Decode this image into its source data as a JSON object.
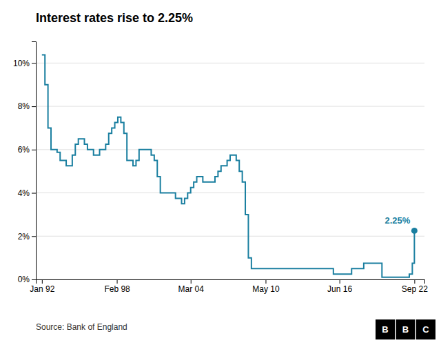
{
  "chart_data": {
    "type": "line",
    "line_style": "step",
    "title": "Interest rates rise to 2.25%",
    "source": "Source: Bank of England",
    "logo": [
      "B",
      "B",
      "C"
    ],
    "color": "#1a7fa0",
    "grid": true,
    "x": [
      1992.0,
      1992.08,
      1992.25,
      1992.5,
      1992.75,
      1993.0,
      1993.25,
      1993.5,
      1993.75,
      1994.0,
      1994.25,
      1994.5,
      1994.75,
      1995.0,
      1995.25,
      1995.5,
      1995.75,
      1996.0,
      1996.25,
      1996.5,
      1996.75,
      1997.0,
      1997.25,
      1997.5,
      1997.75,
      1998.0,
      1998.25,
      1998.5,
      1998.75,
      1999.0,
      1999.25,
      1999.5,
      1999.75,
      2000.0,
      2000.25,
      2000.5,
      2000.75,
      2001.0,
      2001.25,
      2001.5,
      2001.75,
      2002.0,
      2002.25,
      2002.5,
      2002.75,
      2003.0,
      2003.25,
      2003.5,
      2003.75,
      2004.0,
      2004.25,
      2004.5,
      2004.75,
      2005.0,
      2005.25,
      2005.5,
      2005.75,
      2006.0,
      2006.25,
      2006.5,
      2006.75,
      2007.0,
      2007.25,
      2007.5,
      2007.75,
      2008.0,
      2008.25,
      2008.5,
      2008.75,
      2009.0,
      2009.25,
      2010.0,
      2010.5,
      2011.0,
      2011.5,
      2012.0,
      2012.5,
      2013.0,
      2013.5,
      2014.0,
      2014.5,
      2015.0,
      2015.5,
      2016.0,
      2016.5,
      2017.0,
      2017.5,
      2018.0,
      2018.5,
      2019.0,
      2019.5,
      2020.0,
      2020.5,
      2021.0,
      2021.5,
      2022.0,
      2022.25,
      2022.5,
      2022.67
    ],
    "values": [
      10.375,
      10.375,
      9.0,
      7.0,
      6.0,
      6.0,
      5.875,
      5.5,
      5.5,
      5.25,
      5.25,
      5.75,
      6.25,
      6.5,
      6.5,
      6.25,
      6.0,
      6.0,
      5.75,
      5.75,
      6.0,
      6.0,
      6.25,
      6.75,
      7.0,
      7.25,
      7.5,
      7.25,
      6.75,
      5.5,
      5.5,
      5.25,
      5.5,
      6.0,
      6.0,
      6.0,
      6.0,
      5.75,
      5.5,
      4.75,
      4.0,
      4.0,
      4.0,
      4.0,
      4.0,
      3.75,
      3.75,
      3.5,
      3.75,
      4.0,
      4.25,
      4.5,
      4.75,
      4.75,
      4.5,
      4.5,
      4.5,
      4.5,
      4.75,
      5.0,
      5.25,
      5.25,
      5.5,
      5.75,
      5.75,
      5.5,
      5.0,
      4.5,
      3.0,
      1.0,
      0.5,
      0.5,
      0.5,
      0.5,
      0.5,
      0.5,
      0.5,
      0.5,
      0.5,
      0.5,
      0.5,
      0.5,
      0.5,
      0.25,
      0.25,
      0.25,
      0.5,
      0.5,
      0.75,
      0.75,
      0.75,
      0.1,
      0.1,
      0.1,
      0.1,
      0.1,
      0.25,
      0.75,
      2.25
    ],
    "xlim": [
      1991.5,
      2023.5
    ],
    "xticks": [
      {
        "value": 1992.0,
        "label": "Jan 92"
      },
      {
        "value": 1998.17,
        "label": "Feb 98"
      },
      {
        "value": 2004.25,
        "label": "Mar 04"
      },
      {
        "value": 2010.42,
        "label": "May 10"
      },
      {
        "value": 2016.5,
        "label": "Jun 16"
      },
      {
        "value": 2022.67,
        "label": "Sep 22"
      }
    ],
    "ylim": [
      0,
      11
    ],
    "yticks": [
      {
        "value": 0,
        "label": "0%"
      },
      {
        "value": 2,
        "label": "2%"
      },
      {
        "value": 4,
        "label": "4%"
      },
      {
        "value": 6,
        "label": "6%"
      },
      {
        "value": 8,
        "label": "8%"
      },
      {
        "value": 10,
        "label": "10%"
      }
    ],
    "annotations": [
      {
        "text": "2.25%",
        "x": 2022.67,
        "y": 2.25,
        "color": "#1a7fa0",
        "marker": "circle"
      }
    ]
  }
}
